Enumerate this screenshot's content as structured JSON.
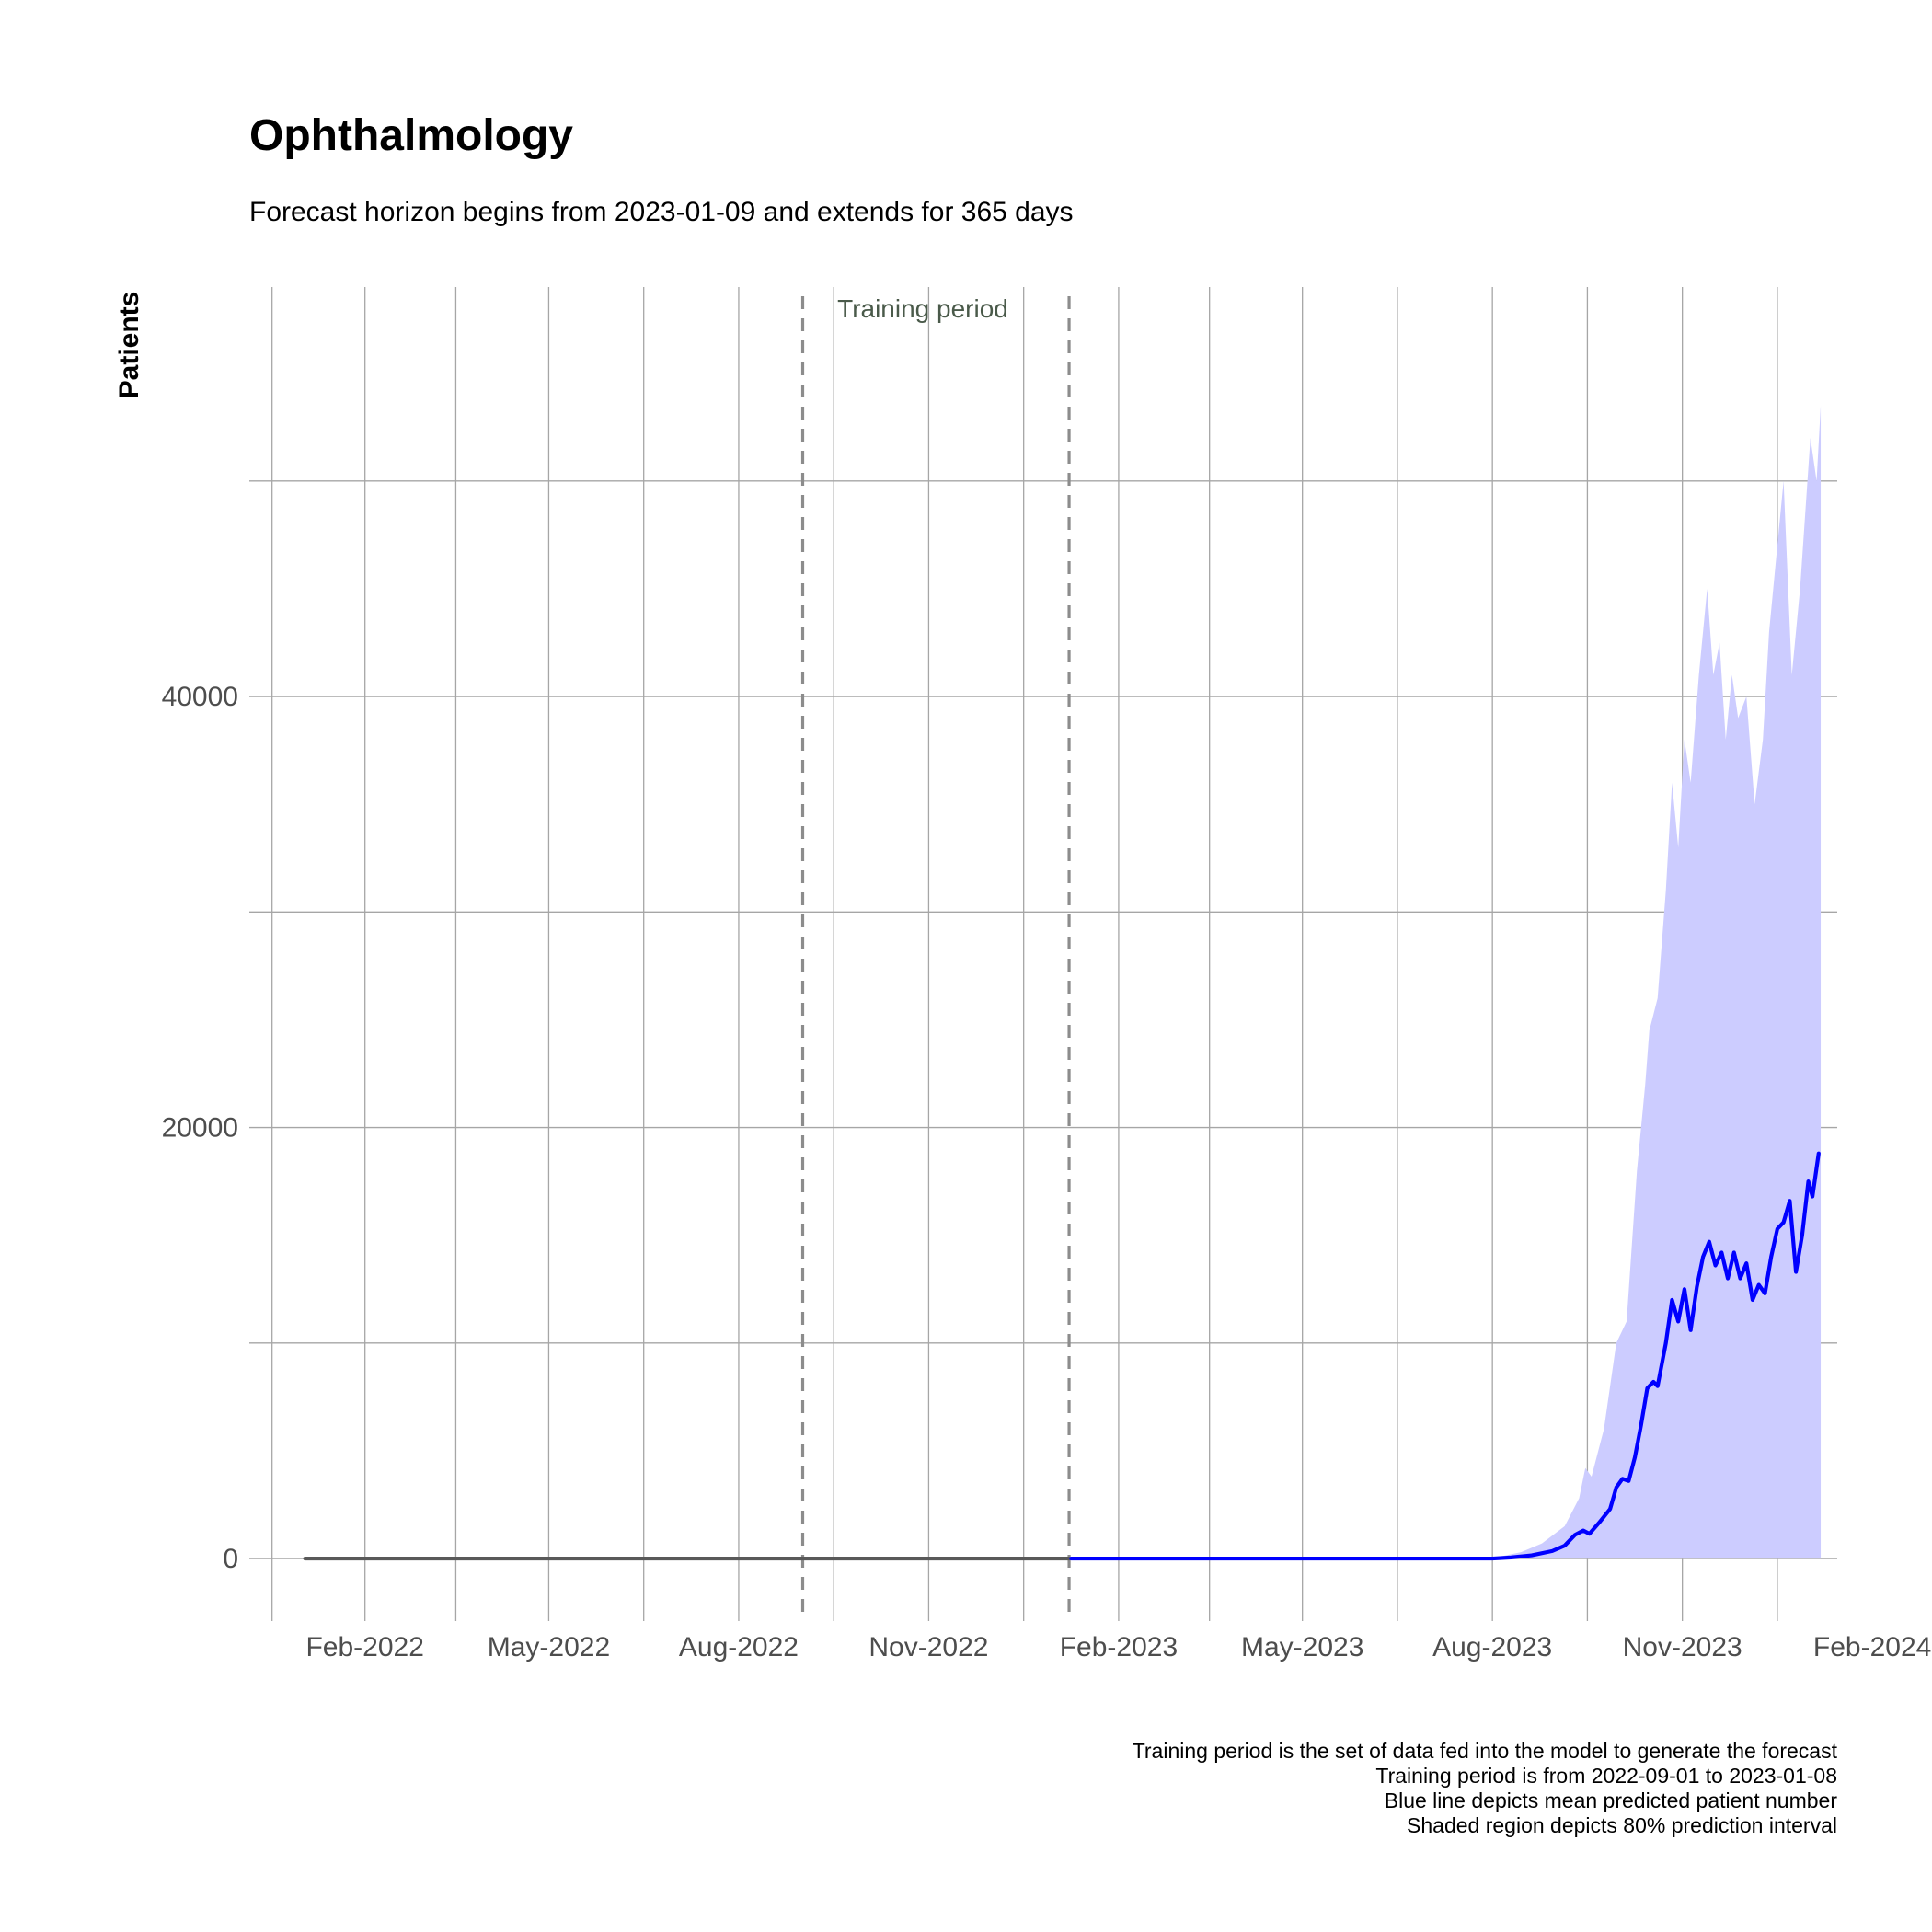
{
  "chart_data": {
    "type": "line",
    "title": "Ophthalmology",
    "subtitle": "Forecast horizon begins from 2023-01-09 and extends for 365 days",
    "xlabel": "",
    "ylabel": "Patients",
    "x_ticks": [
      {
        "date": "2022-02-01",
        "label": "Feb-2022"
      },
      {
        "date": "2022-05-01",
        "label": "May-2022"
      },
      {
        "date": "2022-08-01",
        "label": "Aug-2022"
      },
      {
        "date": "2022-11-01",
        "label": "Nov-2022"
      },
      {
        "date": "2023-02-01",
        "label": "Feb-2023"
      },
      {
        "date": "2023-05-01",
        "label": "May-2023"
      },
      {
        "date": "2023-08-01",
        "label": "Aug-2023"
      },
      {
        "date": "2023-11-01",
        "label": "Nov-2023"
      },
      {
        "date": "2024-02-01",
        "label": "Feb-2024"
      }
    ],
    "y_ticks": [
      {
        "value": 0,
        "label": "0"
      },
      {
        "value": 20000,
        "label": "20000"
      },
      {
        "value": 40000,
        "label": "40000"
      }
    ],
    "ylim": [
      -2900,
      59000
    ],
    "xlim": [
      "2021-12-07",
      "2024-01-15"
    ],
    "grid": true,
    "annotation": {
      "text": "Training period",
      "start": "2022-09-01",
      "end": "2023-01-08"
    },
    "series": [
      {
        "color": "#595959",
        "points": [
          [
            "2022-01-03",
            0
          ],
          [
            "2023-01-08",
            0
          ]
        ]
      },
      {
        "color": "#0000ff",
        "points": [
          [
            "2023-01-09",
            0
          ],
          [
            "2023-08-01",
            0
          ],
          [
            "2023-08-10",
            50
          ],
          [
            "2023-08-20",
            150
          ],
          [
            "2023-08-30",
            350
          ],
          [
            "2023-09-05",
            600
          ],
          [
            "2023-09-10",
            1100
          ],
          [
            "2023-09-14",
            1300
          ],
          [
            "2023-09-17",
            1150
          ],
          [
            "2023-09-22",
            1700
          ],
          [
            "2023-09-27",
            2300
          ],
          [
            "2023-09-30",
            3300
          ],
          [
            "2023-10-03",
            3700
          ],
          [
            "2023-10-06",
            3600
          ],
          [
            "2023-10-09",
            4700
          ],
          [
            "2023-10-12",
            6200
          ],
          [
            "2023-10-15",
            7900
          ],
          [
            "2023-10-18",
            8200
          ],
          [
            "2023-10-20",
            8000
          ],
          [
            "2023-10-24",
            10000
          ],
          [
            "2023-10-27",
            12000
          ],
          [
            "2023-10-30",
            11000
          ],
          [
            "2023-11-02",
            12500
          ],
          [
            "2023-11-05",
            10600
          ],
          [
            "2023-11-08",
            12600
          ],
          [
            "2023-11-11",
            14000
          ],
          [
            "2023-11-14",
            14700
          ],
          [
            "2023-11-17",
            13600
          ],
          [
            "2023-11-20",
            14200
          ],
          [
            "2023-11-23",
            13000
          ],
          [
            "2023-11-26",
            14200
          ],
          [
            "2023-11-29",
            13000
          ],
          [
            "2023-12-02",
            13700
          ],
          [
            "2023-12-05",
            12000
          ],
          [
            "2023-12-08",
            12700
          ],
          [
            "2023-12-11",
            12300
          ],
          [
            "2023-12-14",
            14000
          ],
          [
            "2023-12-17",
            15300
          ],
          [
            "2023-12-20",
            15600
          ],
          [
            "2023-12-23",
            16600
          ],
          [
            "2023-12-26",
            13300
          ],
          [
            "2023-12-29",
            15000
          ],
          [
            "2024-01-01",
            17500
          ],
          [
            "2024-01-03",
            16800
          ],
          [
            "2024-01-06",
            18800
          ]
        ]
      }
    ],
    "interval_80": {
      "color": "#ccccff",
      "lower": [
        [
          "2023-01-09",
          0
        ],
        [
          "2024-01-07",
          0
        ]
      ],
      "upper": [
        [
          "2023-01-09",
          0
        ],
        [
          "2023-07-25",
          0
        ],
        [
          "2023-08-05",
          100
        ],
        [
          "2023-08-15",
          300
        ],
        [
          "2023-08-25",
          700
        ],
        [
          "2023-09-05",
          1500
        ],
        [
          "2023-09-12",
          2800
        ],
        [
          "2023-09-15",
          4200
        ],
        [
          "2023-09-18",
          3800
        ],
        [
          "2023-09-24",
          6000
        ],
        [
          "2023-09-30",
          10000
        ],
        [
          "2023-10-05",
          11000
        ],
        [
          "2023-10-10",
          18000
        ],
        [
          "2023-10-14",
          22000
        ],
        [
          "2023-10-16",
          24500
        ],
        [
          "2023-10-20",
          26000
        ],
        [
          "2023-10-24",
          31000
        ],
        [
          "2023-10-27",
          36000
        ],
        [
          "2023-10-30",
          33000
        ],
        [
          "2023-11-02",
          38000
        ],
        [
          "2023-11-05",
          36000
        ],
        [
          "2023-11-09",
          41000
        ],
        [
          "2023-11-13",
          45000
        ],
        [
          "2023-11-16",
          41000
        ],
        [
          "2023-11-19",
          42500
        ],
        [
          "2023-11-22",
          38000
        ],
        [
          "2023-11-25",
          41000
        ],
        [
          "2023-11-28",
          39000
        ],
        [
          "2023-12-02",
          40000
        ],
        [
          "2023-12-06",
          35000
        ],
        [
          "2023-12-10",
          38000
        ],
        [
          "2023-12-13",
          43000
        ],
        [
          "2023-12-16",
          46000
        ],
        [
          "2023-12-20",
          50000
        ],
        [
          "2023-12-24",
          41000
        ],
        [
          "2023-12-28",
          45000
        ],
        [
          "2024-01-02",
          52000
        ],
        [
          "2024-01-05",
          50000
        ],
        [
          "2024-01-07",
          53500
        ]
      ]
    },
    "caption": [
      "Training period is the set of data fed into the model to generate the forecast",
      "Training period is from 2022-09-01 to 2023-01-08",
      "Blue line depicts mean predicted patient number",
      "Shaded region depicts 80% prediction interval"
    ]
  }
}
